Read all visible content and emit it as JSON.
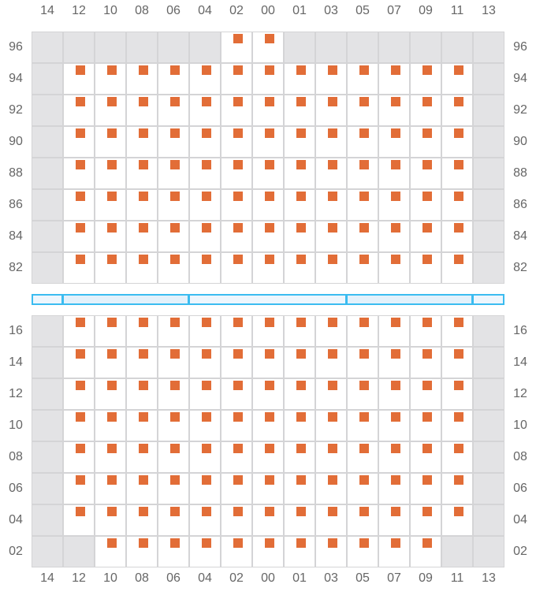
{
  "columns": [
    "14",
    "12",
    "10",
    "08",
    "06",
    "04",
    "02",
    "00",
    "01",
    "03",
    "05",
    "07",
    "09",
    "11",
    "13"
  ],
  "colors": {
    "seat": "#e26d37",
    "unavailable": "#e3e3e5",
    "grid": "#d4d4d6",
    "divider": "#3bbcf0"
  },
  "legend_key": {
    "G": "unavailable",
    "S": "seat"
  },
  "top_section": [
    {
      "row": "96",
      "cells": "GGGGGGSSGGGGGGG"
    },
    {
      "row": "94",
      "cells": "GSSSSSSSSSSSSSG"
    },
    {
      "row": "92",
      "cells": "GSSSSSSSSSSSSSG"
    },
    {
      "row": "90",
      "cells": "GSSSSSSSSSSSSSG"
    },
    {
      "row": "88",
      "cells": "GSSSSSSSSSSSSSG"
    },
    {
      "row": "86",
      "cells": "GSSSSSSSSSSSSSG"
    },
    {
      "row": "84",
      "cells": "GSSSSSSSSSSSSSG"
    },
    {
      "row": "82",
      "cells": "GSSSSSSSSSSSSSG"
    }
  ],
  "bottom_section": [
    {
      "row": "16",
      "cells": "GSSSSSSSSSSSSSG"
    },
    {
      "row": "14",
      "cells": "GSSSSSSSSSSSSSG"
    },
    {
      "row": "12",
      "cells": "GSSSSSSSSSSSSSG"
    },
    {
      "row": "10",
      "cells": "GSSSSSSSSSSSSSG"
    },
    {
      "row": "08",
      "cells": "GSSSSSSSSSSSSSG"
    },
    {
      "row": "06",
      "cells": "GSSSSSSSSSSSSSG"
    },
    {
      "row": "04",
      "cells": "GSSSSSSSSSSSSSG"
    },
    {
      "row": "02",
      "cells": "GGSSSSSSSSSSSGG"
    }
  ],
  "divider_segments": [
    {
      "from": "14",
      "to": "14",
      "fill": "#eef6fd"
    },
    {
      "from": "12",
      "to": "06",
      "fill": "#e3f1fb"
    },
    {
      "from": "04",
      "to": "03",
      "fill": "#eef6fd"
    },
    {
      "from": "05",
      "to": "11",
      "fill": "#e3f1fb"
    },
    {
      "from": "13",
      "to": "13",
      "fill": "#eef6fd"
    }
  ]
}
